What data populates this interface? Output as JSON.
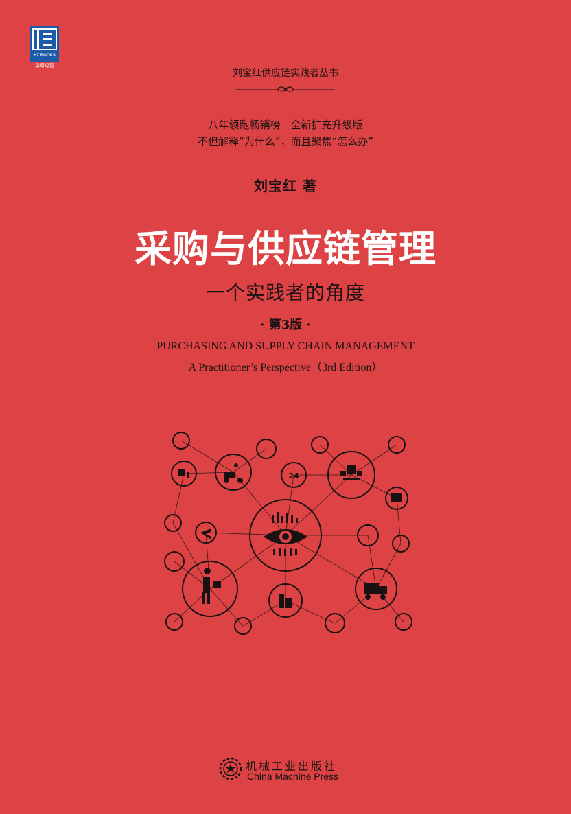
{
  "logo": {
    "brand": "HZ BOOKS",
    "chinese": "华章经管"
  },
  "series": "刘宝红供应链实践者丛书",
  "taglines": [
    "八年领跑畅销榜　全新扩充升级版",
    "不但解释“为什么”，而且聚焦“怎么办”"
  ],
  "author": "刘宝红 著",
  "title_cn": "采购与供应链管理",
  "subtitle_cn": "一个实践者的角度",
  "edition": "· 第3版 ·",
  "title_en": "PURCHASING AND SUPPLY CHAIN MANAGEMENT",
  "subtitle_en": "A Practitioner’s Perspective（3rd Edition）",
  "network_center_icon": "eye-icon",
  "network_icons": [
    "chat-bubble-icon",
    "scanner-icon",
    "shopping-cart-icon",
    "search-icon",
    "forklift-icon",
    "delivery-scooter-icon",
    "24h-clock-icon",
    "scale-packages-icon",
    "container-icon",
    "warehouse-icon",
    "airplane-icon",
    "hand-phone-icon",
    "cloud-icon",
    "ship-icon",
    "courier-person-icon",
    "building-icon",
    "delivery-truck-icon",
    "chip-icon",
    "box-globe-icon",
    "open-box-icon",
    "mobile-icon"
  ],
  "publisher": {
    "cn": "机械工业出版社",
    "en": "China Machine Press"
  },
  "colors": {
    "background": "#dd4344",
    "ink": "#1a1212",
    "title": "#ffffff",
    "logo": "#1d5aa8"
  }
}
